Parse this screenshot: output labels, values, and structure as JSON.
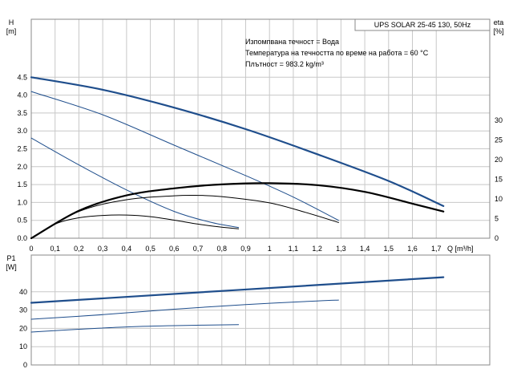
{
  "title": "UPS SOLAR 25-45 130, 50Hz",
  "notes": [
    "Изпомпвана течност = Вода",
    "Температура на течността по време на работа = 60 °C",
    "Плътност = 983.2 kg/m³"
  ],
  "colors": {
    "pump_curve": "#1f4e8c",
    "efficiency_curve": "#000000",
    "grid": "#c8c8c8",
    "frame": "#888888"
  },
  "chart_data": [
    {
      "type": "line",
      "xlabel": "Q [m³/h]",
      "xlim": [
        0,
        1.8
      ],
      "x_ticks": [
        0,
        0.1,
        0.2,
        0.3,
        0.4,
        0.5,
        0.6,
        0.7,
        0.8,
        0.9,
        1.0,
        1.1,
        1.2,
        1.3,
        1.4,
        1.5,
        1.6,
        1.7
      ],
      "x_tick_labels": [
        "0",
        "0,1",
        "0,2",
        "0,3",
        "0,4",
        "0,5",
        "0,6",
        "0,7",
        "0,8",
        "0,9",
        "1",
        "1,1",
        "1,2",
        "1,3",
        "1,4",
        "1,5",
        "1,6",
        "1,7"
      ],
      "ylabel": "H\n[m]",
      "ylim": [
        0,
        5
      ],
      "y_ticks": [
        "0.0",
        "0.5",
        "1.0",
        "1.5",
        "2.0",
        "2.5",
        "3.0",
        "3.5",
        "4.0",
        "4.5"
      ],
      "y2label": "eta\n[%]",
      "y2lim": [
        0,
        40
      ],
      "y2_ticks": [
        "0",
        "5",
        "10",
        "15",
        "20",
        "25",
        "30"
      ],
      "grid": true,
      "series": [
        {
          "kind": "head",
          "axis": "left",
          "width": 2,
          "x": [
            0,
            0.3,
            0.6,
            0.9,
            1.2,
            1.5,
            1.73
          ],
          "values": [
            4.5,
            4.15,
            3.65,
            3.05,
            2.35,
            1.6,
            0.9
          ]
        },
        {
          "kind": "head",
          "axis": "left",
          "width": 1,
          "x": [
            0,
            0.3,
            0.6,
            0.9,
            1.1,
            1.29
          ],
          "values": [
            4.1,
            3.45,
            2.6,
            1.75,
            1.15,
            0.5
          ]
        },
        {
          "kind": "head",
          "axis": "left",
          "width": 1,
          "x": [
            0,
            0.2,
            0.4,
            0.6,
            0.75,
            0.87
          ],
          "values": [
            2.8,
            2.05,
            1.35,
            0.75,
            0.45,
            0.3
          ]
        },
        {
          "kind": "efficiency",
          "axis": "right",
          "width": 2,
          "x": [
            0,
            0.2,
            0.4,
            0.6,
            0.8,
            1.0,
            1.2,
            1.4,
            1.6,
            1.73
          ],
          "values": [
            0,
            7.0,
            10.9,
            12.7,
            13.7,
            14.0,
            13.5,
            11.8,
            8.8,
            6.8
          ]
        },
        {
          "kind": "efficiency",
          "axis": "right",
          "width": 1,
          "x": [
            0,
            0.2,
            0.4,
            0.6,
            0.7,
            0.8,
            1.0,
            1.15,
            1.29
          ],
          "values": [
            0,
            6.8,
            9.8,
            10.8,
            10.9,
            10.6,
            9.0,
            6.6,
            4.0
          ]
        },
        {
          "kind": "efficiency",
          "axis": "right",
          "width": 1,
          "x": [
            0,
            0.1,
            0.2,
            0.3,
            0.4,
            0.5,
            0.6,
            0.7,
            0.8,
            0.87
          ],
          "values": [
            0,
            3.6,
            5.2,
            5.8,
            5.9,
            5.5,
            4.6,
            3.6,
            2.8,
            2.4
          ]
        }
      ]
    },
    {
      "type": "line",
      "ylabel": "P1\n[W]",
      "ylim": [
        0,
        50
      ],
      "y_ticks": [
        "0",
        "10",
        "20",
        "30",
        "40"
      ],
      "xlim": [
        0,
        1.8
      ],
      "grid": true,
      "series": [
        {
          "width": 2,
          "x": [
            0,
            1.73
          ],
          "values": [
            34,
            48
          ]
        },
        {
          "width": 1,
          "x": [
            0,
            0.3,
            0.6,
            0.9,
            1.2,
            1.29
          ],
          "values": [
            25,
            27.5,
            30.5,
            33,
            35,
            35.5
          ]
        },
        {
          "width": 1,
          "x": [
            0,
            0.2,
            0.4,
            0.6,
            0.87
          ],
          "values": [
            18,
            19.5,
            20.8,
            21.5,
            22
          ]
        }
      ]
    }
  ]
}
